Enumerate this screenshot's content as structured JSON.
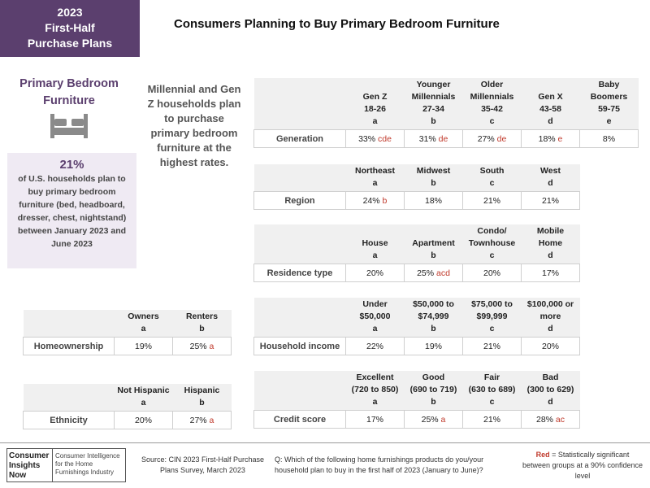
{
  "badge": {
    "year": "2023",
    "line2": "First-Half",
    "line3": "Purchase Plans"
  },
  "page_title": "Consumers Planning to Buy Primary Bedroom Furniture",
  "category": {
    "line1": "Primary Bedroom",
    "line2": "Furniture",
    "icon": "bed-icon"
  },
  "stat": {
    "pct": "21%",
    "text": "of U.S. households plan to buy primary bedroom furniture (bed, headboard, dresser, chest, nightstand) between January 2023 and June 2023"
  },
  "callout": "Millennial and Gen Z households plan to purchase primary bedroom furniture at the highest rates.",
  "tables": {
    "generation": {
      "label": "Generation",
      "columns": [
        {
          "l1": "",
          "l2": "Gen Z",
          "l3": "18-26",
          "letter": "a"
        },
        {
          "l1": "Younger",
          "l2": "Millennials",
          "l3": "27-34",
          "letter": "b"
        },
        {
          "l1": "Older",
          "l2": "Millennials",
          "l3": "35-42",
          "letter": "c"
        },
        {
          "l1": "",
          "l2": "Gen X",
          "l3": "43-58",
          "letter": "d"
        },
        {
          "l1": "Baby",
          "l2": "Boomers",
          "l3": "59-75",
          "letter": "e"
        }
      ],
      "values": [
        {
          "v": "33%",
          "sig": "cde"
        },
        {
          "v": "31%",
          "sig": "de"
        },
        {
          "v": "27%",
          "sig": "de"
        },
        {
          "v": "18%",
          "sig": "e"
        },
        {
          "v": "8%",
          "sig": ""
        }
      ]
    },
    "region": {
      "label": "Region",
      "columns": [
        {
          "l1": "Northeast",
          "letter": "a"
        },
        {
          "l1": "Midwest",
          "letter": "b"
        },
        {
          "l1": "South",
          "letter": "c"
        },
        {
          "l1": "West",
          "letter": "d"
        }
      ],
      "values": [
        {
          "v": "24%",
          "sig": "b"
        },
        {
          "v": "18%",
          "sig": ""
        },
        {
          "v": "21%",
          "sig": ""
        },
        {
          "v": "21%",
          "sig": ""
        }
      ]
    },
    "residence": {
      "label": "Residence type",
      "columns": [
        {
          "l1": "",
          "l2": "House",
          "letter": "a"
        },
        {
          "l1": "",
          "l2": "Apartment",
          "letter": "b"
        },
        {
          "l1": "Condo/",
          "l2": "Townhouse",
          "letter": "c"
        },
        {
          "l1": "Mobile",
          "l2": "Home",
          "letter": "d"
        }
      ],
      "values": [
        {
          "v": "20%",
          "sig": ""
        },
        {
          "v": "25%",
          "sig": "acd"
        },
        {
          "v": "20%",
          "sig": ""
        },
        {
          "v": "17%",
          "sig": ""
        }
      ]
    },
    "income": {
      "label": "Household income",
      "columns": [
        {
          "l1": "Under",
          "l2": "$50,000",
          "letter": "a"
        },
        {
          "l1": "$50,000 to",
          "l2": "$74,999",
          "letter": "b"
        },
        {
          "l1": "$75,000 to",
          "l2": "$99,999",
          "letter": "c"
        },
        {
          "l1": "$100,000 or",
          "l2": "more",
          "letter": "d"
        }
      ],
      "values": [
        {
          "v": "22%",
          "sig": ""
        },
        {
          "v": "19%",
          "sig": ""
        },
        {
          "v": "21%",
          "sig": ""
        },
        {
          "v": "20%",
          "sig": ""
        }
      ]
    },
    "credit": {
      "label": "Credit score",
      "columns": [
        {
          "l1": "Excellent",
          "l2": "(720 to 850)",
          "letter": "a"
        },
        {
          "l1": "Good",
          "l2": "(690 to 719)",
          "letter": "b"
        },
        {
          "l1": "Fair",
          "l2": "(630 to 689)",
          "letter": "c"
        },
        {
          "l1": "Bad",
          "l2": "(300 to 629)",
          "letter": "d"
        }
      ],
      "values": [
        {
          "v": "17%",
          "sig": ""
        },
        {
          "v": "25%",
          "sig": "a"
        },
        {
          "v": "21%",
          "sig": ""
        },
        {
          "v": "28%",
          "sig": "ac"
        }
      ]
    },
    "homeownership": {
      "label": "Homeownership",
      "columns": [
        {
          "l1": "Owners",
          "letter": "a"
        },
        {
          "l1": "Renters",
          "letter": "b"
        }
      ],
      "values": [
        {
          "v": "19%",
          "sig": ""
        },
        {
          "v": "25%",
          "sig": "a"
        }
      ]
    },
    "ethnicity": {
      "label": "Ethnicity",
      "columns": [
        {
          "l1": "Not Hispanic",
          "letter": "a"
        },
        {
          "l1": "Hispanic",
          "letter": "b"
        }
      ],
      "values": [
        {
          "v": "20%",
          "sig": ""
        },
        {
          "v": "27%",
          "sig": "a"
        }
      ]
    }
  },
  "footer": {
    "logo_left": "Consumer Insights Now",
    "logo_right": "Consumer Intelligence for the Home Furnishings Industry",
    "source": "Source: CIN 2023 First-Half Purchase Plans Survey, March 2023",
    "question": "Q: Which of the following home furnishings products do you/your household plan to buy in the first half of 2023 (January to June)?",
    "legend_red_word": "Red",
    "legend_rest": " = Statistically significant between groups at a 90% confidence level"
  },
  "colors": {
    "brand_purple": "#5b3f6e",
    "significant_red": "#c0392b"
  }
}
